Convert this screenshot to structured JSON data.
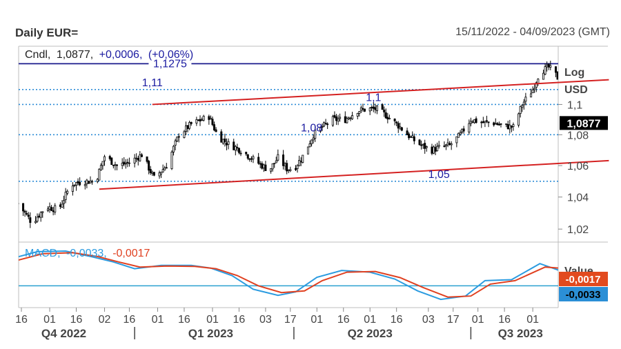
{
  "header": {
    "title": "Daily EUR=",
    "date_range": "15/11/2022 - 04/09/2023 (GMT)"
  },
  "colors": {
    "candle": "#000000",
    "channel": "#d42020",
    "level_solid": "#1a1a8c",
    "level_dotted": "#2b8bd6",
    "level_label": "#1a1aa0",
    "macd": "#2b9be0",
    "signal": "#e04020",
    "zero_line": "#2aa0d0",
    "price_tag_bg": "#000000"
  },
  "chart_data": [
    {
      "type": "candlestick",
      "title": "Daily EUR=",
      "legend": {
        "label": "Cndl,",
        "value": "1,0877,",
        "change": "+0,0006,",
        "change_pct": "(+0,06%)"
      },
      "scale": "log",
      "axis_unit_labels": [
        "Log",
        "USD"
      ],
      "ylim": [
        1.012,
        1.1395
      ],
      "y_ticks": [
        {
          "value": 1.02,
          "label": "1,02"
        },
        {
          "value": 1.04,
          "label": "1,04"
        },
        {
          "value": 1.06,
          "label": "1,06"
        },
        {
          "value": 1.08,
          "label": "1,08"
        },
        {
          "value": 1.1,
          "label": "1,1"
        }
      ],
      "last_price": {
        "value": 1.0877,
        "label": "1,0877"
      },
      "horizontal_levels": [
        {
          "value": 1.1275,
          "label": "1,1275",
          "style": "solid",
          "label_x": "2023-01-08"
        },
        {
          "value": 1.11,
          "label": "1,11",
          "style": "dotted",
          "label_x": "2022-12-29"
        },
        {
          "value": 1.1,
          "label": "1,1",
          "style": "dotted",
          "label_x": "2023-05-03"
        },
        {
          "value": 1.08,
          "label": "1,08",
          "style": "dotted",
          "label_x": "2023-03-29"
        },
        {
          "value": 1.05,
          "label": "1,05",
          "style": "dotted",
          "label_x": "2023-06-09"
        }
      ],
      "trend_lines": [
        {
          "from": [
            "2022-12-29",
            1.1
          ],
          "to": [
            "2023-09-13",
            1.1166
          ]
        },
        {
          "from": [
            "2022-11-29",
            1.045
          ],
          "to": [
            "2023-09-13",
            1.0632
          ]
        }
      ],
      "x_ticks": [
        {
          "date": "2022-10-16",
          "label": "16"
        },
        {
          "date": "2022-11-01",
          "label": "01"
        },
        {
          "date": "2022-11-16",
          "label": "16"
        },
        {
          "date": "2022-12-02",
          "label": "02"
        },
        {
          "date": "2022-12-16",
          "label": "16"
        },
        {
          "date": "2023-01-01",
          "label": "01"
        },
        {
          "date": "2023-01-16",
          "label": "16"
        },
        {
          "date": "2023-02-01",
          "label": "01"
        },
        {
          "date": "2023-02-16",
          "label": "16"
        },
        {
          "date": "2023-03-03",
          "label": "03"
        },
        {
          "date": "2023-03-17",
          "label": "17"
        },
        {
          "date": "2023-04-01",
          "label": "01"
        },
        {
          "date": "2023-04-16",
          "label": "16"
        },
        {
          "date": "2023-05-01",
          "label": "01"
        },
        {
          "date": "2023-05-16",
          "label": "16"
        },
        {
          "date": "2023-06-03",
          "label": "03"
        },
        {
          "date": "2023-06-17",
          "label": "17"
        },
        {
          "date": "2023-07-01",
          "label": "01"
        },
        {
          "date": "2023-07-16",
          "label": "16"
        },
        {
          "date": "2023-08-01",
          "label": "01"
        }
      ],
      "quarters": [
        {
          "label": "Q4 2022",
          "center": "2022-11-09"
        },
        {
          "label": "Q1 2023",
          "center": "2023-01-31"
        },
        {
          "label": "Q2 2023",
          "center": "2023-05-01"
        },
        {
          "label": "Q3 2023",
          "center": "2023-07-25"
        }
      ],
      "quarter_dividers": [
        "2022-12-19",
        "2023-03-19",
        "2023-06-27"
      ],
      "close_path": [
        [
          "2022-10-14",
          1.036
        ],
        [
          "2022-10-22",
          1.024
        ],
        [
          "2022-10-30",
          1.034
        ],
        [
          "2022-11-06",
          1.032
        ],
        [
          "2022-11-13",
          1.048
        ],
        [
          "2022-11-20",
          1.05
        ],
        [
          "2022-11-27",
          1.05
        ],
        [
          "2022-12-02",
          1.066
        ],
        [
          "2022-12-09",
          1.06
        ],
        [
          "2022-12-16",
          1.062
        ],
        [
          "2022-12-23",
          1.067
        ],
        [
          "2022-12-30",
          1.052
        ],
        [
          "2023-01-06",
          1.06
        ],
        [
          "2023-01-13",
          1.08
        ],
        [
          "2023-01-20",
          1.087
        ],
        [
          "2023-01-26",
          1.09
        ],
        [
          "2023-01-30",
          1.092
        ],
        [
          "2023-02-04",
          1.079
        ],
        [
          "2023-02-10",
          1.074
        ],
        [
          "2023-02-17",
          1.07
        ],
        [
          "2023-02-24",
          1.064
        ],
        [
          "2023-03-01",
          1.06
        ],
        [
          "2023-03-05",
          1.057
        ],
        [
          "2023-03-10",
          1.065
        ],
        [
          "2023-03-15",
          1.058
        ],
        [
          "2023-03-19",
          1.058
        ],
        [
          "2023-03-24",
          1.066
        ],
        [
          "2023-03-30",
          1.08
        ],
        [
          "2023-04-04",
          1.085
        ],
        [
          "2023-04-10",
          1.09
        ],
        [
          "2023-04-17",
          1.09
        ],
        [
          "2023-04-24",
          1.096
        ],
        [
          "2023-05-01",
          1.097
        ],
        [
          "2023-05-05",
          1.097
        ],
        [
          "2023-05-11",
          1.092
        ],
        [
          "2023-05-18",
          1.085
        ],
        [
          "2023-05-24",
          1.078
        ],
        [
          "2023-05-30",
          1.073
        ],
        [
          "2023-06-05",
          1.07
        ],
        [
          "2023-06-10",
          1.072
        ],
        [
          "2023-06-15",
          1.073
        ],
        [
          "2023-06-21",
          1.08
        ],
        [
          "2023-06-27",
          1.09
        ],
        [
          "2023-07-03",
          1.088
        ],
        [
          "2023-07-09",
          1.088
        ],
        [
          "2023-07-15",
          1.086
        ],
        [
          "2023-07-21",
          1.085
        ],
        [
          "2023-07-26",
          1.1
        ],
        [
          "2023-08-01",
          1.11
        ],
        [
          "2023-08-05",
          1.122
        ],
        [
          "2023-08-10",
          1.125
        ],
        [
          "2023-08-13",
          1.122
        ],
        [
          "2023-08-17",
          1.114
        ],
        [
          "2023-08-22",
          1.101
        ],
        [
          "2023-08-27",
          1.1
        ],
        [
          "2023-09-01",
          1.098
        ],
        [
          "2023-09-06",
          1.095
        ],
        [
          "2023-09-11",
          1.09
        ],
        [
          "2023-09-15",
          1.0877
        ]
      ]
    },
    {
      "type": "line",
      "title": "MACD",
      "legend": {
        "label": "MACD,",
        "macd_value": "-0,0033,",
        "signal_value": "-0,0017"
      },
      "value_label": "Value",
      "zero_line": 0,
      "ylim": [
        -0.006,
        0.011
      ],
      "end_tags": [
        {
          "value": -0.0017,
          "label": "-0,0017",
          "series": "Signal"
        },
        {
          "value": -0.0033,
          "label": "-0,0033",
          "series": "MACD"
        }
      ],
      "series": [
        {
          "name": "MACD",
          "points": [
            [
              "2022-10-14",
              0.0085
            ],
            [
              "2022-10-25",
              0.01
            ],
            [
              "2022-11-10",
              0.0102
            ],
            [
              "2022-11-25",
              0.0085
            ],
            [
              "2022-12-07",
              0.007
            ],
            [
              "2022-12-19",
              0.005
            ],
            [
              "2023-01-03",
              0.006
            ],
            [
              "2023-01-20",
              0.006
            ],
            [
              "2023-01-31",
              0.0052
            ],
            [
              "2023-02-12",
              0.003
            ],
            [
              "2023-02-24",
              -0.001
            ],
            [
              "2023-03-10",
              -0.0028
            ],
            [
              "2023-03-20",
              -0.0018
            ],
            [
              "2023-04-01",
              0.0025
            ],
            [
              "2023-04-15",
              0.0045
            ],
            [
              "2023-05-01",
              0.004
            ],
            [
              "2023-05-15",
              0.002
            ],
            [
              "2023-05-28",
              -0.0015
            ],
            [
              "2023-06-10",
              -0.004
            ],
            [
              "2023-06-24",
              -0.003
            ],
            [
              "2023-07-05",
              0.0015
            ],
            [
              "2023-07-20",
              0.0018
            ],
            [
              "2023-08-05",
              0.0065
            ],
            [
              "2023-08-16",
              0.0045
            ],
            [
              "2023-08-28",
              0.001
            ],
            [
              "2023-09-08",
              -0.001
            ],
            [
              "2023-09-15",
              -0.0033
            ]
          ]
        },
        {
          "name": "Signal",
          "points": [
            [
              "2022-10-14",
              0.0075
            ],
            [
              "2022-10-28",
              0.0094
            ],
            [
              "2022-11-14",
              0.0097
            ],
            [
              "2022-11-28",
              0.0086
            ],
            [
              "2022-12-10",
              0.007
            ],
            [
              "2022-12-22",
              0.0055
            ],
            [
              "2023-01-06",
              0.0058
            ],
            [
              "2023-01-22",
              0.0057
            ],
            [
              "2023-02-03",
              0.005
            ],
            [
              "2023-02-15",
              0.003
            ],
            [
              "2023-02-27",
              0.0
            ],
            [
              "2023-03-12",
              -0.002
            ],
            [
              "2023-03-25",
              -0.0015
            ],
            [
              "2023-04-04",
              0.0015
            ],
            [
              "2023-04-18",
              0.004
            ],
            [
              "2023-05-04",
              0.0042
            ],
            [
              "2023-05-18",
              0.0024
            ],
            [
              "2023-05-31",
              -0.0005
            ],
            [
              "2023-06-14",
              -0.0033
            ],
            [
              "2023-06-27",
              -0.003
            ],
            [
              "2023-07-08",
              0.0005
            ],
            [
              "2023-07-22",
              0.0015
            ],
            [
              "2023-08-08",
              0.0055
            ],
            [
              "2023-08-20",
              0.005
            ],
            [
              "2023-08-31",
              0.002
            ],
            [
              "2023-09-10",
              0.0
            ],
            [
              "2023-09-15",
              -0.0017
            ]
          ]
        }
      ]
    }
  ]
}
